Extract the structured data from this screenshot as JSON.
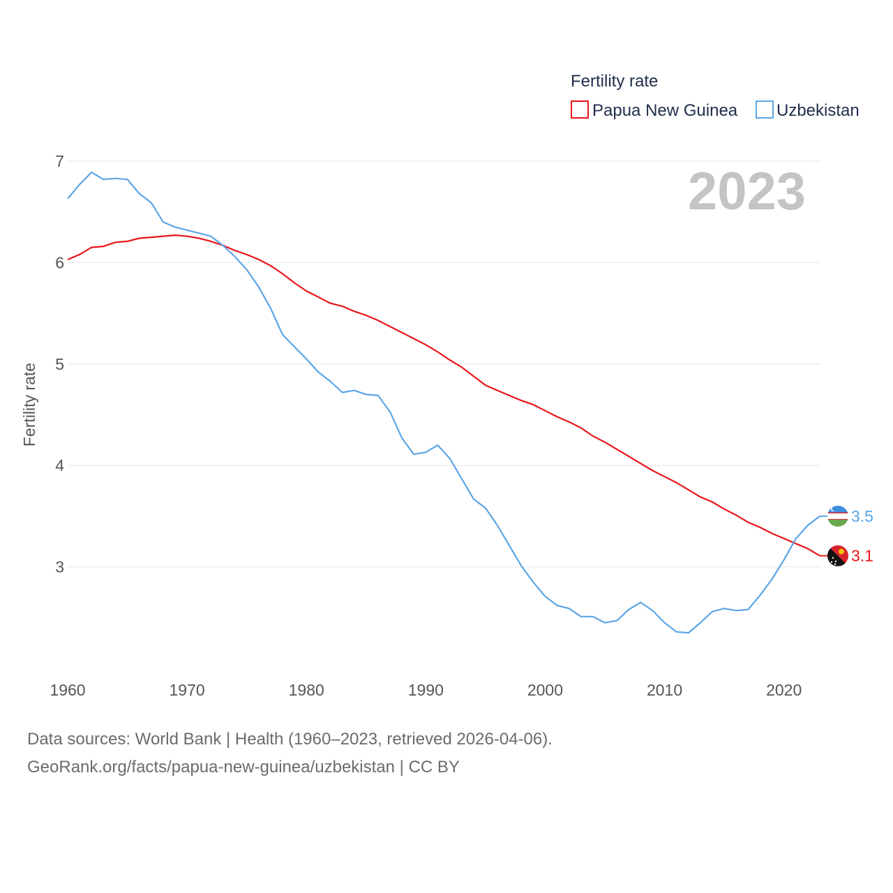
{
  "chart_data": {
    "type": "line",
    "title": "Fertility rate",
    "ylabel": "Fertility rate",
    "xlabel": "",
    "year_overlay": "2023",
    "xlim": [
      1960,
      2023
    ],
    "ylim": [
      2,
      7
    ],
    "x_ticks": [
      1960,
      1970,
      1980,
      1990,
      2000,
      2010,
      2020
    ],
    "y_ticks": [
      3,
      4,
      5,
      6,
      7
    ],
    "grid": true,
    "legend_position": "top-right",
    "series": [
      {
        "name": "Papua New Guinea",
        "color": "#e8161b",
        "end_label": "3.1",
        "flag": "papua-new-guinea-flag",
        "x_start": 1960,
        "values": [
          6.03,
          6.08,
          6.15,
          6.16,
          6.2,
          6.21,
          6.24,
          6.25,
          6.26,
          6.27,
          6.26,
          6.24,
          6.21,
          6.17,
          6.12,
          6.08,
          6.03,
          5.97,
          5.89,
          5.8,
          5.72,
          5.66,
          5.6,
          5.57,
          5.52,
          5.48,
          5.43,
          5.37,
          5.31,
          5.25,
          5.19,
          5.12,
          5.04,
          4.97,
          4.88,
          4.79,
          4.74,
          4.69,
          4.64,
          4.6,
          4.54,
          4.48,
          4.43,
          4.37,
          4.29,
          4.23,
          4.16,
          4.09,
          4.02,
          3.95,
          3.89,
          3.83,
          3.76,
          3.69,
          3.64,
          3.57,
          3.51,
          3.44,
          3.39,
          3.33,
          3.28,
          3.23,
          3.18,
          3.11
        ]
      },
      {
        "name": "Uzbekistan",
        "color": "#5ca5e6",
        "end_label": "3.5",
        "flag": "uzbekistan-flag",
        "x_start": 1960,
        "values": [
          6.63,
          6.77,
          6.89,
          6.82,
          6.83,
          6.82,
          6.68,
          6.59,
          6.4,
          6.35,
          6.32,
          6.29,
          6.26,
          6.17,
          6.06,
          5.93,
          5.76,
          5.55,
          5.29,
          5.17,
          5.05,
          4.92,
          4.83,
          4.72,
          4.74,
          4.7,
          4.69,
          4.53,
          4.27,
          4.11,
          4.13,
          4.2,
          4.07,
          3.87,
          3.67,
          3.58,
          3.41,
          3.21,
          3.01,
          2.85,
          2.71,
          2.62,
          2.59,
          2.51,
          2.51,
          2.45,
          2.47,
          2.58,
          2.65,
          2.57,
          2.45,
          2.36,
          2.35,
          2.45,
          2.56,
          2.59,
          2.57,
          2.58,
          2.72,
          2.88,
          3.07,
          3.28,
          3.41,
          3.5
        ]
      }
    ]
  },
  "footer": {
    "line1": "Data sources: World Bank | Health (1960–2023, retrieved 2026-04-06).",
    "line2": "GeoRank.org/facts/papua-new-guinea/uzbekistan | CC BY"
  }
}
